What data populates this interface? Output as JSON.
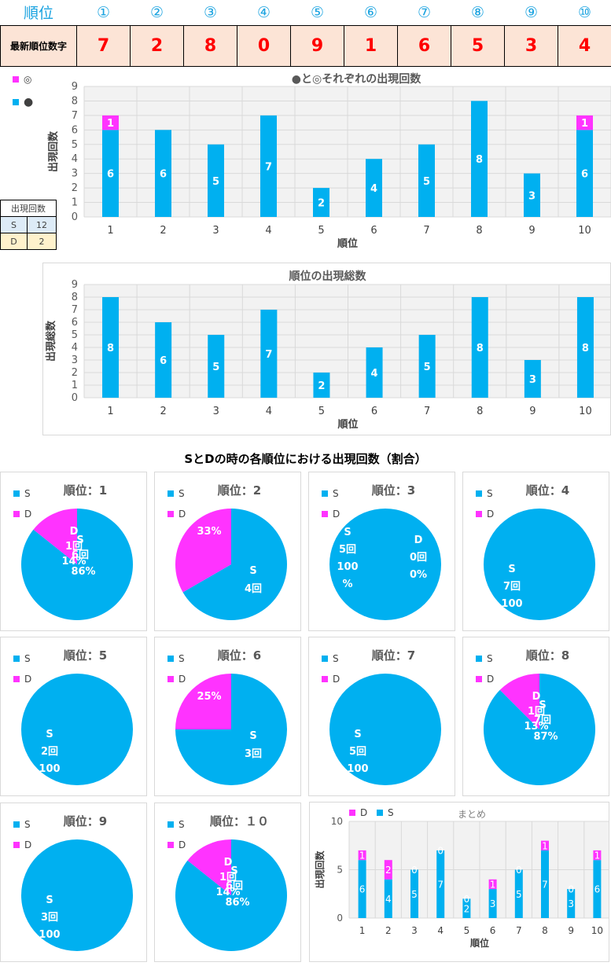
{
  "header": {
    "rank_label": "順位",
    "ranks": [
      "①",
      "②",
      "③",
      "④",
      "⑤",
      "⑥",
      "⑦",
      "⑧",
      "⑨",
      "⑩"
    ],
    "digits_label": "最新順位数字",
    "digits": [
      "7",
      "2",
      "8",
      "0",
      "9",
      "1",
      "6",
      "5",
      "3",
      "4"
    ]
  },
  "colors": {
    "S": "#00b0f0",
    "D": "#ff33ff",
    "digit": "#ff0000",
    "rank": "#1aa3e0"
  },
  "legend": {
    "d": "◎",
    "s": "●"
  },
  "count_table": {
    "title": "出現回数",
    "rows": [
      {
        "k": "S",
        "v": "12"
      },
      {
        "k": "D",
        "v": "2"
      }
    ]
  },
  "chart1": {
    "title": "●と◎それぞれの出現回数",
    "xlabel": "順位",
    "ylabel": "出現回数"
  },
  "chart2": {
    "title": "順位の出現総数",
    "xlabel": "順位",
    "ylabel": "出現総数"
  },
  "pies_title": "SとDの時の各順位における出現回数（割合）",
  "summary": {
    "title": "まとめ",
    "xlabel": "順位",
    "ylabel": "出現回数",
    "legend_d": "D",
    "legend_s": "S"
  },
  "chart_data": [
    {
      "type": "bar",
      "stacked": true,
      "title": "●と◎それぞれの出現回数",
      "xlabel": "順位",
      "ylabel": "出現回数",
      "categories": [
        "1",
        "2",
        "3",
        "4",
        "5",
        "6",
        "7",
        "8",
        "9",
        "10"
      ],
      "series": [
        {
          "name": "●",
          "values": [
            6,
            6,
            5,
            7,
            2,
            4,
            5,
            8,
            3,
            6
          ]
        },
        {
          "name": "◎",
          "values": [
            1,
            0,
            0,
            0,
            0,
            0,
            0,
            0,
            0,
            1
          ]
        }
      ],
      "ylim": [
        0,
        9
      ],
      "yticks": [
        "0",
        "1",
        "2",
        "3",
        "4",
        "5",
        "6",
        "7",
        "8",
        "9"
      ],
      "grid": true,
      "legend": "top-left"
    },
    {
      "type": "bar",
      "title": "順位の出現総数",
      "xlabel": "順位",
      "ylabel": "出現総数",
      "categories": [
        "1",
        "2",
        "3",
        "4",
        "5",
        "6",
        "7",
        "8",
        "9",
        "10"
      ],
      "values": [
        8,
        6,
        5,
        7,
        2,
        4,
        5,
        8,
        3,
        8
      ],
      "ylim": [
        0,
        9
      ],
      "yticks": [
        "0",
        "1",
        "2",
        "3",
        "4",
        "5",
        "6",
        "7",
        "8",
        "9"
      ],
      "grid": true
    },
    {
      "type": "pie",
      "title": "SとDの時の各順位における出現回数（割合）",
      "legend": "top-left",
      "series_names": [
        "S",
        "D"
      ],
      "pies": [
        {
          "title": "順位：1",
          "slices": [
            {
              "name": "S",
              "value": 6,
              "count": "6回",
              "pct": "86%"
            },
            {
              "name": "D",
              "value": 1,
              "count": "1回",
              "pct": "14%"
            }
          ]
        },
        {
          "title": "順位：2",
          "slices": [
            {
              "name": "S",
              "value": 4,
              "count": "4回",
              "pct": ""
            },
            {
              "name": "D",
              "value": 2,
              "count": "",
              "pct": "33%"
            }
          ]
        },
        {
          "title": "順位：3",
          "slices": [
            {
              "name": "S",
              "value": 5,
              "count": "5回",
              "pct": "100%"
            },
            {
              "name": "D",
              "value": 0,
              "count": "0回",
              "pct": "0%"
            }
          ]
        },
        {
          "title": "順位：4",
          "slices": [
            {
              "name": "S",
              "value": 7,
              "count": "7回",
              "pct": "100"
            },
            {
              "name": "D",
              "value": 0,
              "count": "",
              "pct": "0"
            }
          ]
        },
        {
          "title": "順位：5",
          "slices": [
            {
              "name": "S",
              "value": 2,
              "count": "2回",
              "pct": "100"
            },
            {
              "name": "D",
              "value": 0,
              "count": "",
              "pct": "0%"
            }
          ]
        },
        {
          "title": "順位：6",
          "slices": [
            {
              "name": "S",
              "value": 3,
              "count": "3回",
              "pct": ""
            },
            {
              "name": "D",
              "value": 1,
              "count": "",
              "pct": "25%"
            }
          ]
        },
        {
          "title": "順位：7",
          "slices": [
            {
              "name": "S",
              "value": 5,
              "count": "5回",
              "pct": "100"
            },
            {
              "name": "D",
              "value": 0,
              "count": "",
              "pct": "0"
            }
          ]
        },
        {
          "title": "順位：8",
          "slices": [
            {
              "name": "S",
              "value": 7,
              "count": "7回",
              "pct": "87%"
            },
            {
              "name": "D",
              "value": 1,
              "count": "1回",
              "pct": "13%"
            }
          ]
        },
        {
          "title": "順位：9",
          "slices": [
            {
              "name": "S",
              "value": 3,
              "count": "3回",
              "pct": "100"
            },
            {
              "name": "D",
              "value": 0,
              "count": "",
              "pct": "0"
            }
          ]
        },
        {
          "title": "順位：１０",
          "slices": [
            {
              "name": "S",
              "value": 6,
              "count": "6回",
              "pct": "86%"
            },
            {
              "name": "D",
              "value": 1,
              "count": "1回",
              "pct": "14%"
            }
          ]
        }
      ]
    },
    {
      "type": "bar",
      "stacked": true,
      "title": "まとめ",
      "xlabel": "順位",
      "ylabel": "出現回数",
      "categories": [
        "1",
        "2",
        "3",
        "4",
        "5",
        "6",
        "7",
        "8",
        "9",
        "10"
      ],
      "series": [
        {
          "name": "S",
          "values": [
            6,
            4,
            5,
            7,
            2,
            3,
            5,
            7,
            3,
            6
          ]
        },
        {
          "name": "D",
          "values": [
            1,
            2,
            0,
            0,
            0,
            1,
            0,
            1,
            0,
            1
          ]
        }
      ],
      "ylim": [
        0,
        10
      ],
      "yticks": [
        "0",
        "5",
        "10"
      ],
      "grid": true,
      "legend": "top-left"
    }
  ]
}
